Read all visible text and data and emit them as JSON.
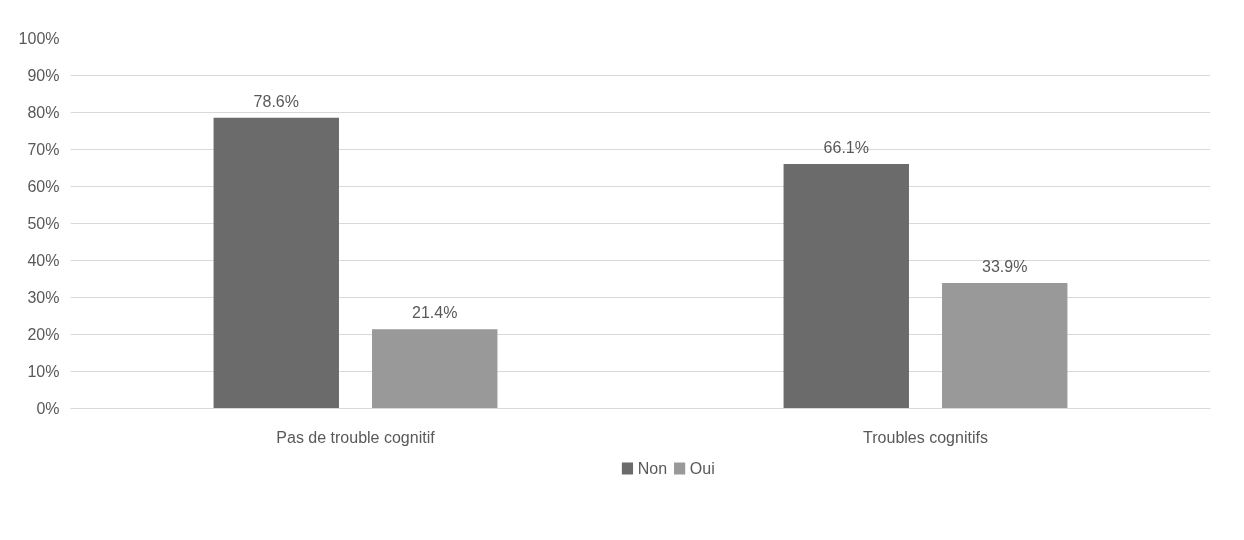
{
  "chart_data": {
    "type": "bar",
    "categories": [
      "Pas de trouble cognitif",
      "Troubles cognitifs"
    ],
    "series": [
      {
        "name": "Non",
        "color": "#6b6b6b",
        "values": [
          78.6,
          66.1
        ],
        "value_labels": [
          "78.6%",
          "66.1%"
        ]
      },
      {
        "name": "Oui",
        "color": "#999999",
        "values": [
          21.4,
          33.9
        ],
        "value_labels": [
          "21.4%",
          "33.9%"
        ]
      }
    ],
    "ylim": [
      0,
      100
    ],
    "yticks": [
      {
        "value": 0,
        "label": "0%"
      },
      {
        "value": 10,
        "label": "10%"
      },
      {
        "value": 20,
        "label": "20%"
      },
      {
        "value": 30,
        "label": "30%"
      },
      {
        "value": 40,
        "label": "40%"
      },
      {
        "value": 50,
        "label": "50%"
      },
      {
        "value": 60,
        "label": "60%"
      },
      {
        "value": 70,
        "label": "70%"
      },
      {
        "value": 80,
        "label": "80%"
      },
      {
        "value": 90,
        "label": "90%"
      },
      {
        "value": 100,
        "label": "100%"
      }
    ],
    "grid": "y",
    "legend": "bottom"
  }
}
